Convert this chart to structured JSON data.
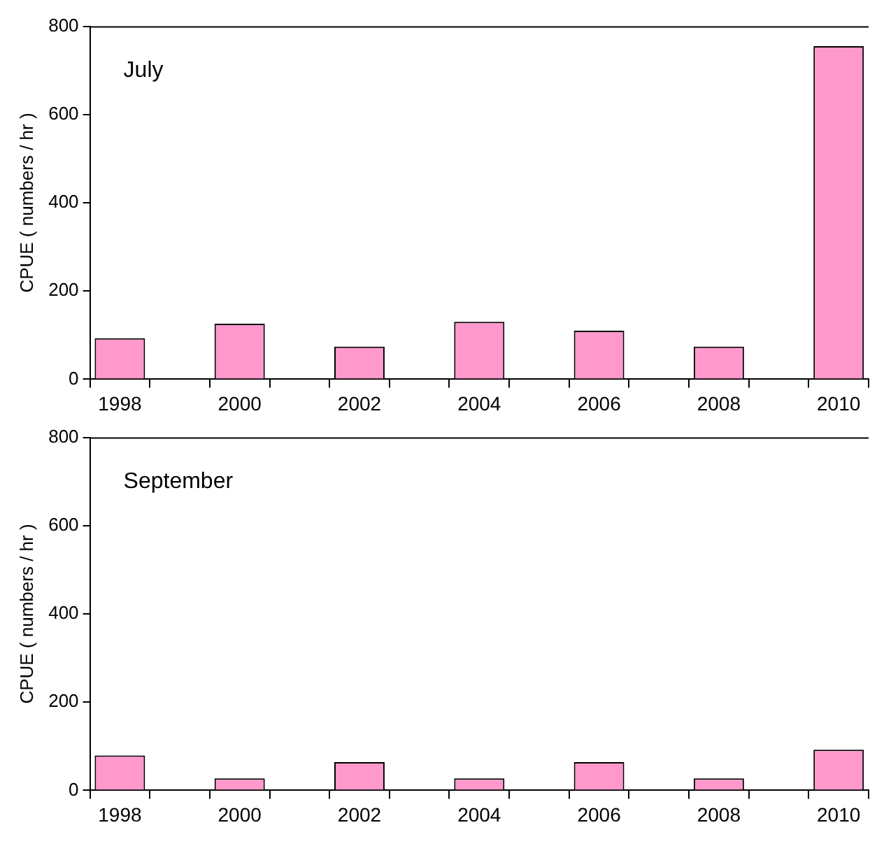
{
  "chart_data": [
    {
      "type": "bar",
      "title": "July",
      "ylabel": "CPUE ( numbers / hr )",
      "categories": [
        "1998",
        null,
        "2000",
        null,
        "2002",
        null,
        "2004",
        null,
        "2006",
        null,
        "2008",
        null,
        "2010"
      ],
      "values": [
        93,
        null,
        126,
        null,
        74,
        null,
        130,
        null,
        110,
        null,
        74,
        null,
        755
      ],
      "color": "#ff99cc",
      "ylim": [
        0,
        800
      ],
      "yticks": [
        0,
        200,
        400,
        600,
        800
      ],
      "grid": false,
      "legend": false
    },
    {
      "type": "bar",
      "title": "September",
      "ylabel": "CPUE ( numbers / hr )",
      "categories": [
        "1998",
        null,
        "2000",
        null,
        "2002",
        null,
        "2004",
        null,
        "2006",
        null,
        "2008",
        null,
        "2010"
      ],
      "values": [
        79,
        null,
        27,
        null,
        64,
        null,
        27,
        null,
        64,
        null,
        27,
        null,
        92
      ],
      "color": "#ff99cc",
      "ylim": [
        0,
        800
      ],
      "yticks": [
        0,
        200,
        400,
        600,
        800
      ],
      "grid": false,
      "legend": false
    }
  ]
}
